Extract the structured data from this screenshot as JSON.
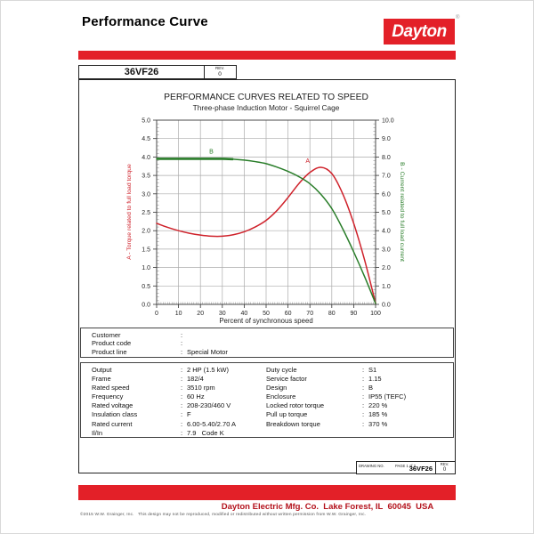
{
  "header": {
    "title": "Performance Curve",
    "logo_text": "Dayton",
    "registered_mark": "®"
  },
  "title_block": {
    "model": "36VF26",
    "rev_label": "REV.",
    "rev_value": "0"
  },
  "punct": {
    "colon": ":"
  },
  "chart_data": {
    "type": "line",
    "title": "PERFORMANCE CURVES RELATED TO SPEED",
    "subtitle": "Three-phase Induction Motor - Squirrel Cage",
    "xlabel": "Percent of synchronous speed",
    "x_range": [
      0,
      100
    ],
    "x_tick_step": 10,
    "x_minor_step": 1,
    "grid": true,
    "legend_position": "inline-labels",
    "left_y": {
      "label": "A - Torque related to full load torque",
      "range": [
        0,
        5
      ],
      "tick_step": 0.5,
      "minor_step": 0.1,
      "color": "#cf222b"
    },
    "right_y": {
      "label": "B - Current related to full load current",
      "range": [
        0,
        10
      ],
      "tick_step": 1,
      "minor_step": 0.2,
      "color": "#297d29"
    },
    "series": [
      {
        "name": "A",
        "description": "torque-related-to-full-load-torque",
        "axis": "left",
        "color": "#cf222b",
        "label": {
          "text": "A",
          "x": 69,
          "y": 3.84
        },
        "points": [
          [
            0,
            2.2
          ],
          [
            5,
            2.09
          ],
          [
            10,
            2.0
          ],
          [
            15,
            1.93
          ],
          [
            20,
            1.88
          ],
          [
            25,
            1.85
          ],
          [
            30,
            1.85
          ],
          [
            35,
            1.89
          ],
          [
            40,
            1.97
          ],
          [
            45,
            2.1
          ],
          [
            50,
            2.28
          ],
          [
            55,
            2.55
          ],
          [
            60,
            2.9
          ],
          [
            65,
            3.28
          ],
          [
            70,
            3.58
          ],
          [
            75,
            3.72
          ],
          [
            80,
            3.55
          ],
          [
            85,
            3.0
          ],
          [
            90,
            2.2
          ],
          [
            95,
            1.2
          ],
          [
            100,
            0.03
          ]
        ]
      },
      {
        "name": "B",
        "description": "current-related-to-full-load-current",
        "axis": "right",
        "color": "#297d29",
        "label": {
          "text": "B",
          "x": 25,
          "y": 8.2
        },
        "emphasis_to": 36,
        "points": [
          [
            0,
            7.9
          ],
          [
            10,
            7.9
          ],
          [
            20,
            7.9
          ],
          [
            30,
            7.9
          ],
          [
            35,
            7.88
          ],
          [
            40,
            7.83
          ],
          [
            45,
            7.75
          ],
          [
            50,
            7.64
          ],
          [
            55,
            7.45
          ],
          [
            60,
            7.22
          ],
          [
            65,
            6.93
          ],
          [
            70,
            6.55
          ],
          [
            75,
            5.98
          ],
          [
            80,
            5.2
          ],
          [
            85,
            4.1
          ],
          [
            90,
            2.85
          ],
          [
            95,
            1.5
          ],
          [
            100,
            0.05
          ]
        ]
      }
    ]
  },
  "customer_box": {
    "rows": [
      {
        "label": "Customer",
        "value": ""
      },
      {
        "label": "Product code",
        "value": ""
      },
      {
        "label": "Product line",
        "value": "Special Motor"
      }
    ]
  },
  "spec_box": {
    "rows": [
      {
        "l_label": "Output",
        "l_value": "2 HP (1.5 kW)",
        "r_label": "Duty cycle",
        "r_value": "S1"
      },
      {
        "l_label": "Frame",
        "l_value": "182/4",
        "r_label": "Service factor",
        "r_value": "1.15"
      },
      {
        "l_label": "Rated speed",
        "l_value": "3510 rpm",
        "r_label": "Design",
        "r_value": "B"
      },
      {
        "l_label": "Frequency",
        "l_value": "60 Hz",
        "r_label": "Enclosure",
        "r_value": "IP55 (TEFC)"
      },
      {
        "l_label": "Rated voltage",
        "l_value": "208-230/460 V",
        "r_label": "Locked rotor torque",
        "r_value": "220 %"
      },
      {
        "l_label": "Insulation class",
        "l_value": "F",
        "r_label": "Pull up torque",
        "r_value": "185 %"
      },
      {
        "l_label": "Rated current",
        "l_value": "6.00-5.40/2.70 A",
        "r_label": "Breakdown torque",
        "r_value": "370 %"
      },
      {
        "l_label": "Il/In",
        "l_value": "7.9   Code K",
        "r_label": "",
        "r_value": ""
      }
    ]
  },
  "drawing_block": {
    "drawing_no_label": "DRAWING NO.",
    "page_label": "PAGE 1 of 2",
    "drawing_no": "36VF26",
    "rev_label": "REV.",
    "rev_value": "0"
  },
  "footer": {
    "company_line": "Dayton Electric Mfg. Co.  Lake Forest, IL  60045  USA",
    "copyright": "©2015 W.W. Grainger, Inc.   This design may not be reproduced, modified or redistributed without written permission from W.W. Grainger, Inc."
  },
  "colors": {
    "brand_red": "#e32028",
    "torque_red": "#cf222b",
    "current_green": "#297d29",
    "footer_text_red": "#b4121c"
  }
}
